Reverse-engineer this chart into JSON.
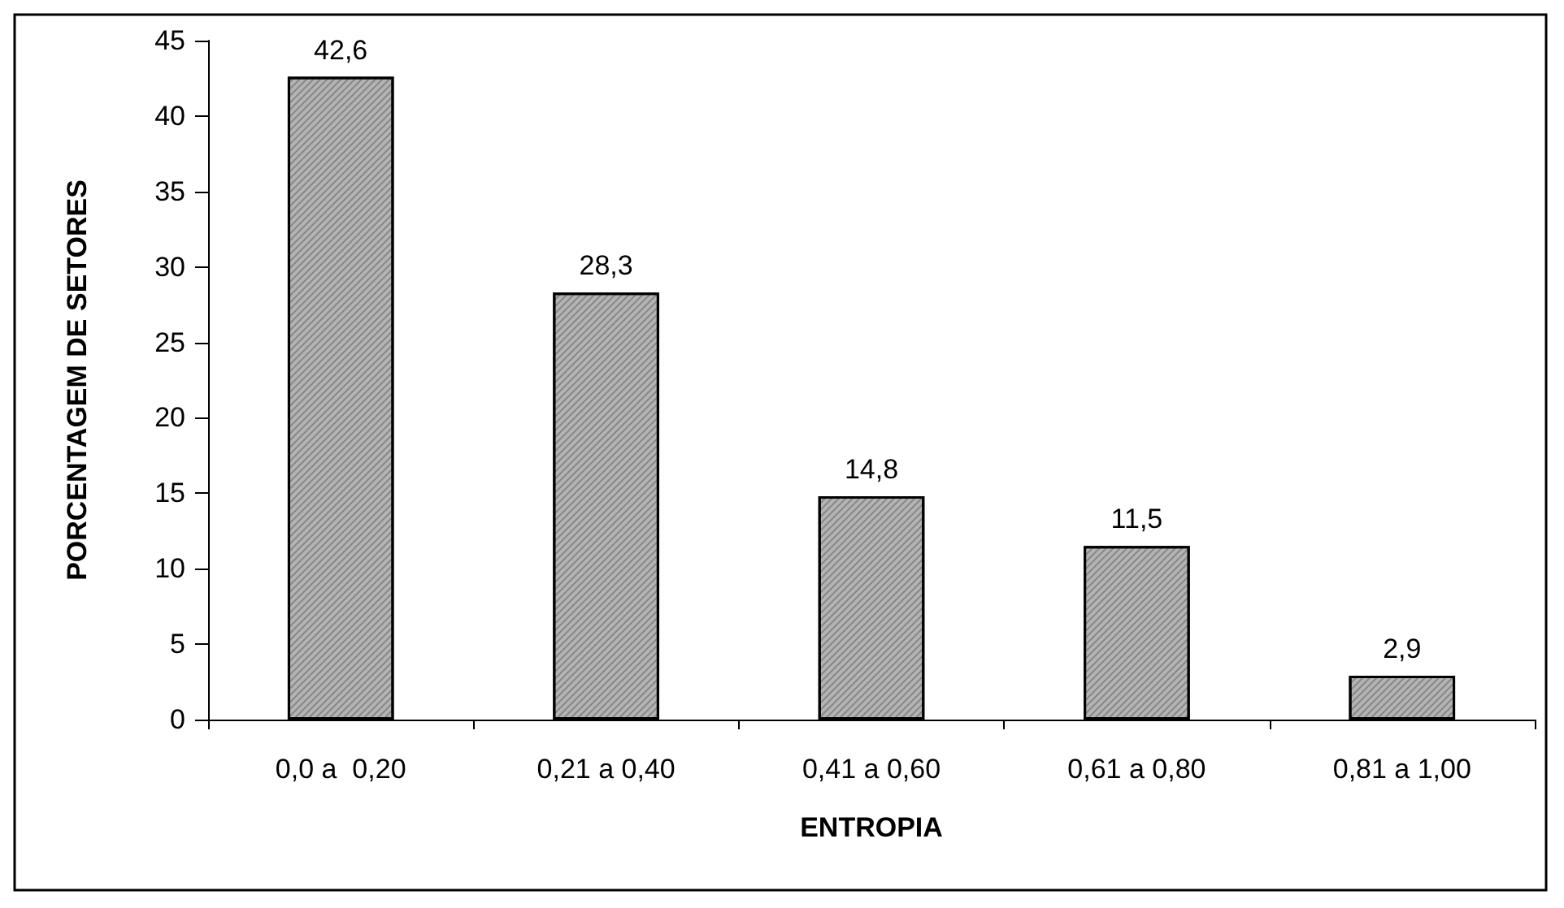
{
  "chart_data": {
    "type": "bar",
    "xlabel": "ENTROPIA",
    "ylabel": "PORCENTAGEM DE SETORES",
    "categories": [
      "0,0 a  0,20",
      "0,21 a 0,40",
      "0,41 a 0,60",
      "0,61 a 0,80",
      "0,81 a 1,00"
    ],
    "values": [
      42.6,
      28.3,
      14.8,
      11.5,
      2.9
    ],
    "value_labels": [
      "42,6",
      "28,3",
      "14,8",
      "11,5",
      "2,9"
    ],
    "color": "#b4b4b4",
    "ylim": [
      0,
      45
    ],
    "yticks": [
      0,
      5,
      10,
      15,
      20,
      25,
      30,
      35,
      40,
      45
    ],
    "grid": false
  }
}
